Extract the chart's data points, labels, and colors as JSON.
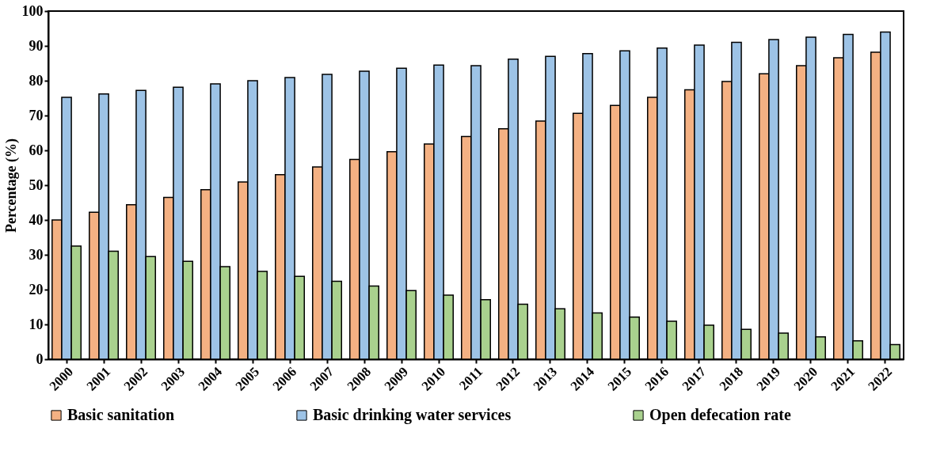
{
  "chart_data": {
    "type": "bar",
    "ylabel": "Percentage (%)",
    "categories": [
      "2000",
      "2001",
      "2002",
      "2003",
      "2004",
      "2005",
      "2006",
      "2007",
      "2008",
      "2009",
      "2010",
      "2011",
      "2012",
      "2013",
      "2014",
      "2015",
      "2016",
      "2017",
      "2018",
      "2019",
      "2020",
      "2021",
      "2022"
    ],
    "series": [
      {
        "name": "Basic sanitation",
        "color": "#f4b183",
        "values": [
          40.0,
          42.2,
          44.4,
          46.5,
          48.7,
          50.9,
          53.0,
          55.2,
          57.4,
          59.6,
          61.8,
          64.0,
          66.2,
          68.4,
          70.6,
          72.9,
          75.2,
          77.4,
          79.8,
          82.0,
          84.3,
          86.6,
          88.2
        ]
      },
      {
        "name": "Basic drinking water services",
        "color": "#9dc3e6",
        "values": [
          75.2,
          76.2,
          77.2,
          78.1,
          79.1,
          80.0,
          80.9,
          81.8,
          82.7,
          83.6,
          84.5,
          84.3,
          86.2,
          87.0,
          87.8,
          88.6,
          89.4,
          90.2,
          91.0,
          91.8,
          92.5,
          93.3,
          94.0
        ]
      },
      {
        "name": "Open defecation rate",
        "color": "#a9d18e",
        "values": [
          32.5,
          31.0,
          29.5,
          28.1,
          26.6,
          25.2,
          23.8,
          22.4,
          21.0,
          19.7,
          18.4,
          17.1,
          15.8,
          14.5,
          13.3,
          12.1,
          10.9,
          9.8,
          8.6,
          7.5,
          6.4,
          5.3,
          4.2
        ]
      }
    ],
    "ylim": [
      0,
      100
    ],
    "yticks": [
      0,
      10,
      20,
      30,
      40,
      50,
      60,
      70,
      80,
      90,
      100
    ],
    "grid": false,
    "legend": "bottom"
  }
}
